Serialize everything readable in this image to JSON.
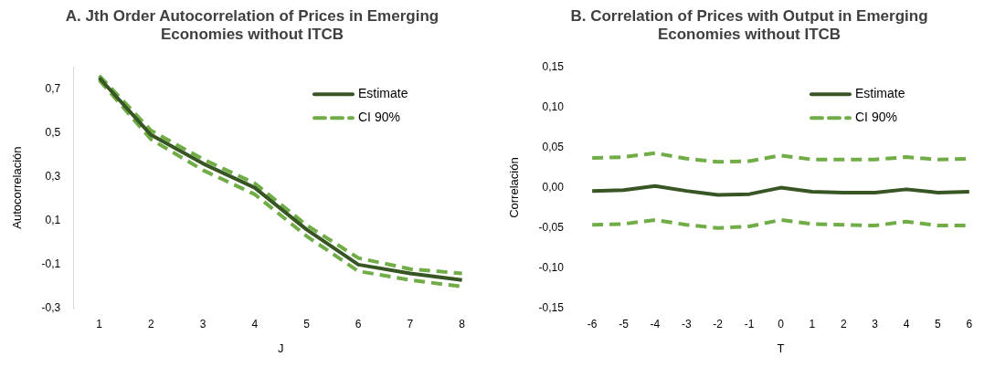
{
  "chart_data": [
    {
      "type": "line",
      "title": "A. Jth Order Autocorrelation of Prices in Emerging Economies without ITCB",
      "xlabel": "J",
      "ylabel": "Autocorrelación",
      "categories": [
        "1",
        "2",
        "3",
        "4",
        "5",
        "6",
        "7",
        "8"
      ],
      "series": [
        {
          "name": "Estimate",
          "color": "#375623",
          "line_style": "solid",
          "values": [
            0.75,
            0.49,
            0.36,
            0.25,
            0.06,
            -0.1,
            -0.14,
            -0.17
          ]
        },
        {
          "name": "CI 90%",
          "color": "#70ad47",
          "line_style": "dashed",
          "values": [
            0.76,
            0.51,
            0.38,
            0.27,
            0.08,
            -0.07,
            -0.12,
            -0.14
          ]
        },
        {
          "color": "#70ad47",
          "line_style": "dashed",
          "values": [
            0.74,
            0.47,
            0.33,
            0.22,
            0.03,
            -0.13,
            -0.17,
            -0.2
          ]
        }
      ],
      "ylim": [
        -0.3,
        0.8
      ],
      "yticks": [
        {
          "value": -0.3,
          "label": "-0,3"
        },
        {
          "value": -0.1,
          "label": "-0,1"
        },
        {
          "value": 0.1,
          "label": "0,1"
        },
        {
          "value": 0.3,
          "label": "0,3"
        },
        {
          "value": 0.5,
          "label": "0,5"
        },
        {
          "value": 0.7,
          "label": "0,7"
        }
      ],
      "grid": false,
      "legend": "top right",
      "marker": "none"
    },
    {
      "type": "line",
      "title": "B. Correlation of Prices with Output in Emerging Economies without ITCB",
      "xlabel": "T",
      "ylabel": "Correlación",
      "categories": [
        "-6",
        "-5",
        "-4",
        "-3",
        "-2",
        "-1",
        "0",
        "1",
        "2",
        "3",
        "4",
        "5",
        "6"
      ],
      "series": [
        {
          "name": "Estimate",
          "color": "#375623",
          "line_style": "solid",
          "values": [
            -0.004,
            -0.003,
            0.002,
            -0.004,
            -0.009,
            -0.008,
            0.0,
            -0.005,
            -0.006,
            -0.006,
            -0.002,
            -0.006,
            -0.005
          ]
        },
        {
          "name": "CI 90%",
          "color": "#70ad47",
          "line_style": "dashed",
          "values": [
            0.037,
            0.038,
            0.043,
            0.036,
            0.032,
            0.033,
            0.04,
            0.035,
            0.035,
            0.035,
            0.038,
            0.035,
            0.036
          ]
        },
        {
          "color": "#70ad47",
          "line_style": "dashed",
          "values": [
            -0.046,
            -0.045,
            -0.04,
            -0.046,
            -0.05,
            -0.048,
            -0.04,
            -0.045,
            -0.046,
            -0.047,
            -0.042,
            -0.047,
            -0.047
          ]
        }
      ],
      "ylim": [
        -0.15,
        0.15
      ],
      "yticks": [
        {
          "value": -0.15,
          "label": "-0,15"
        },
        {
          "value": -0.1,
          "label": "-0,10"
        },
        {
          "value": -0.05,
          "label": "-0,05"
        },
        {
          "value": 0,
          "label": "0,00"
        },
        {
          "value": 0.05,
          "label": "0,05"
        },
        {
          "value": 0.1,
          "label": "0,10"
        },
        {
          "value": 0.15,
          "label": "0,15"
        }
      ],
      "grid": false,
      "legend": "top right",
      "marker": "none"
    }
  ]
}
